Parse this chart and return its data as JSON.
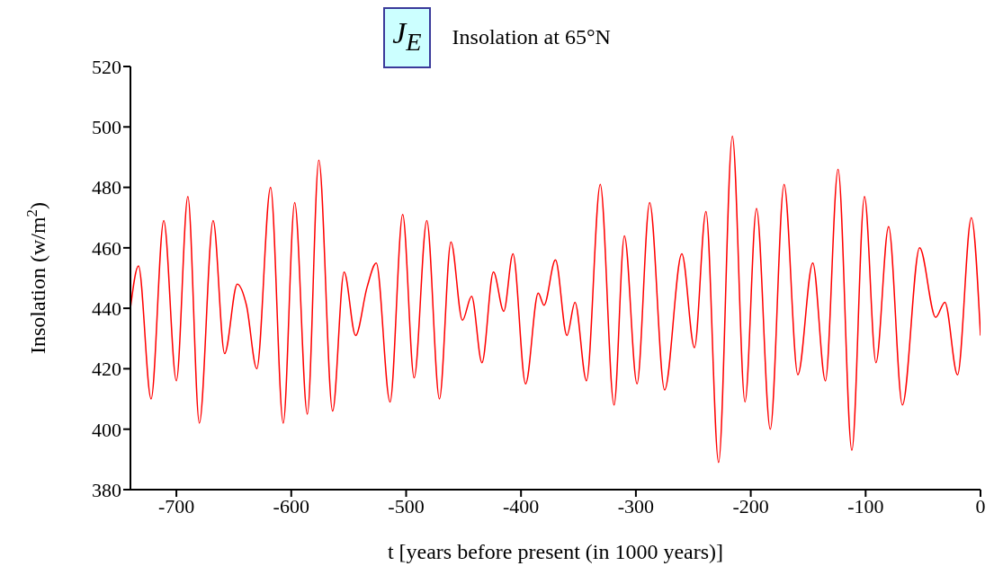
{
  "chart_data": {
    "type": "line",
    "title": "Insolation at 65°N",
    "annotations": [
      "J$_{E}$"
    ],
    "xlabel": "t [years before present (in 1000 years)]",
    "ylabel": "Insolation (w/m$^{2}$)",
    "x": [
      -740,
      -733,
      -722,
      -711,
      -700,
      -690,
      -680,
      -668,
      -658,
      -647,
      -639,
      -630,
      -618,
      -607,
      -597,
      -586,
      -576,
      -564,
      -554,
      -544,
      -534,
      -526,
      -514,
      -503,
      -493,
      -482,
      -471,
      -461,
      -451,
      -443,
      -434,
      -424,
      -415,
      -407,
      -396,
      -385,
      -380,
      -370,
      -360,
      -353,
      -343,
      -331,
      -319,
      -310,
      -299,
      -288,
      -275,
      -260,
      -249,
      -239,
      -228,
      -216,
      -205,
      -195,
      -183,
      -171,
      -159,
      -146,
      -135,
      -124,
      -112,
      -101,
      -91,
      -80,
      -68,
      -53,
      -39,
      -31,
      -20,
      -8,
      0
    ],
    "series": [
      {
        "color": "#ff0000",
        "values": [
          440,
          454,
          410,
          469,
          416,
          477,
          402,
          469,
          425,
          448,
          441,
          420,
          480,
          402,
          475,
          405,
          489,
          406,
          452,
          431,
          447,
          455,
          409,
          471,
          417,
          469,
          410,
          462,
          436,
          444,
          422,
          452,
          439,
          458,
          415,
          445,
          441,
          456,
          431,
          442,
          416,
          481,
          408,
          464,
          415,
          475,
          413,
          458,
          427,
          472,
          389,
          497,
          409,
          473,
          400,
          481,
          418,
          455,
          416,
          486,
          393,
          477,
          422,
          467,
          408,
          460,
          437,
          442,
          418,
          470,
          431
        ]
      }
    ],
    "xlim": [
      -740,
      0
    ],
    "xticks": [
      -700,
      -600,
      -500,
      -400,
      -300,
      -200,
      -100,
      0
    ],
    "ylim": [
      380,
      520
    ],
    "yticks": [
      380,
      400,
      420,
      440,
      460,
      480,
      500,
      520
    ],
    "grid": false,
    "marker": "none",
    "line_style": "solid"
  }
}
